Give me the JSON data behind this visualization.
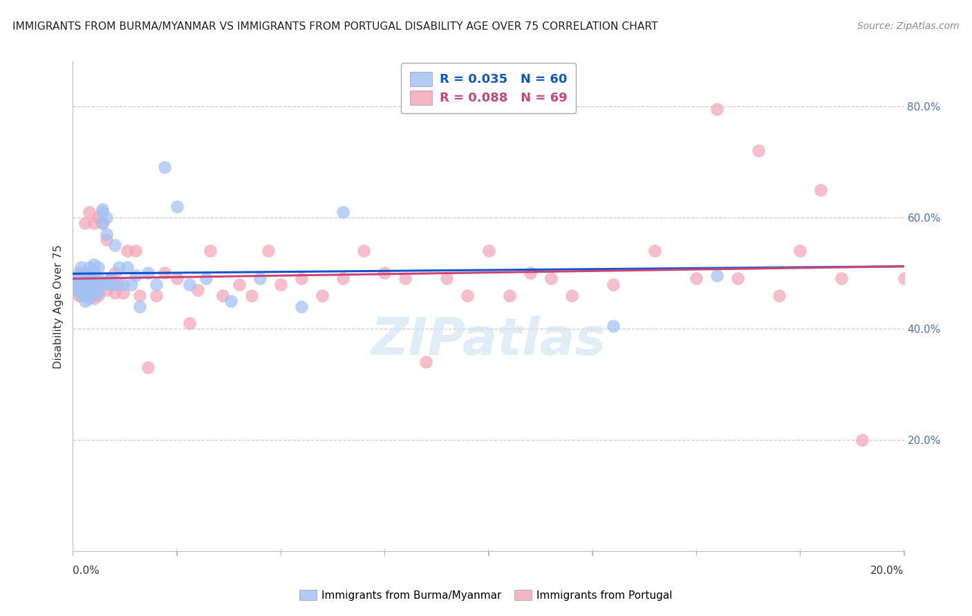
{
  "title": "IMMIGRANTS FROM BURMA/MYANMAR VS IMMIGRANTS FROM PORTUGAL DISABILITY AGE OVER 75 CORRELATION CHART",
  "source": "Source: ZipAtlas.com",
  "ylabel": "Disability Age Over 75",
  "xlim": [
    0.0,
    0.2
  ],
  "ylim": [
    0.0,
    0.88
  ],
  "blue_R": 0.035,
  "blue_N": 60,
  "pink_R": 0.088,
  "pink_N": 69,
  "blue_color": "#a4c2f4",
  "pink_color": "#f4a7b9",
  "blue_line_color": "#1155cc",
  "pink_line_color": "#cc4477",
  "legend_label_blue": "Immigrants from Burma/Myanmar",
  "legend_label_pink": "Immigrants from Portugal",
  "blue_scatter_x": [
    0.0005,
    0.001,
    0.001,
    0.0015,
    0.0015,
    0.002,
    0.002,
    0.002,
    0.002,
    0.002,
    0.0025,
    0.003,
    0.003,
    0.003,
    0.003,
    0.003,
    0.003,
    0.0035,
    0.004,
    0.004,
    0.004,
    0.004,
    0.004,
    0.005,
    0.005,
    0.005,
    0.005,
    0.005,
    0.006,
    0.006,
    0.006,
    0.006,
    0.007,
    0.007,
    0.007,
    0.007,
    0.008,
    0.008,
    0.009,
    0.009,
    0.01,
    0.01,
    0.011,
    0.012,
    0.013,
    0.014,
    0.015,
    0.016,
    0.018,
    0.02,
    0.022,
    0.025,
    0.028,
    0.032,
    0.038,
    0.045,
    0.055,
    0.065,
    0.13,
    0.155
  ],
  "blue_scatter_y": [
    0.475,
    0.48,
    0.49,
    0.47,
    0.5,
    0.485,
    0.495,
    0.46,
    0.51,
    0.475,
    0.465,
    0.48,
    0.5,
    0.49,
    0.47,
    0.46,
    0.45,
    0.49,
    0.5,
    0.485,
    0.47,
    0.455,
    0.51,
    0.495,
    0.505,
    0.475,
    0.465,
    0.515,
    0.49,
    0.48,
    0.51,
    0.465,
    0.615,
    0.61,
    0.59,
    0.48,
    0.6,
    0.57,
    0.49,
    0.48,
    0.55,
    0.48,
    0.51,
    0.48,
    0.51,
    0.48,
    0.495,
    0.44,
    0.5,
    0.48,
    0.69,
    0.62,
    0.48,
    0.49,
    0.45,
    0.49,
    0.44,
    0.61,
    0.405,
    0.495
  ],
  "pink_scatter_x": [
    0.0005,
    0.001,
    0.001,
    0.0015,
    0.002,
    0.002,
    0.0025,
    0.003,
    0.003,
    0.003,
    0.003,
    0.004,
    0.004,
    0.004,
    0.005,
    0.005,
    0.005,
    0.006,
    0.006,
    0.007,
    0.007,
    0.008,
    0.008,
    0.009,
    0.01,
    0.01,
    0.011,
    0.012,
    0.013,
    0.015,
    0.016,
    0.018,
    0.02,
    0.022,
    0.025,
    0.028,
    0.03,
    0.033,
    0.036,
    0.04,
    0.043,
    0.047,
    0.05,
    0.055,
    0.06,
    0.065,
    0.07,
    0.075,
    0.08,
    0.085,
    0.09,
    0.095,
    0.1,
    0.105,
    0.11,
    0.115,
    0.12,
    0.13,
    0.14,
    0.15,
    0.155,
    0.16,
    0.165,
    0.17,
    0.175,
    0.18,
    0.185,
    0.19,
    0.2
  ],
  "pink_scatter_y": [
    0.47,
    0.49,
    0.48,
    0.46,
    0.5,
    0.47,
    0.48,
    0.59,
    0.48,
    0.46,
    0.475,
    0.61,
    0.46,
    0.5,
    0.59,
    0.48,
    0.455,
    0.6,
    0.46,
    0.59,
    0.48,
    0.56,
    0.47,
    0.49,
    0.5,
    0.465,
    0.48,
    0.465,
    0.54,
    0.54,
    0.46,
    0.33,
    0.46,
    0.5,
    0.49,
    0.41,
    0.47,
    0.54,
    0.46,
    0.48,
    0.46,
    0.54,
    0.48,
    0.49,
    0.46,
    0.49,
    0.54,
    0.5,
    0.49,
    0.34,
    0.49,
    0.46,
    0.54,
    0.46,
    0.5,
    0.49,
    0.46,
    0.48,
    0.54,
    0.49,
    0.795,
    0.49,
    0.72,
    0.46,
    0.54,
    0.65,
    0.49,
    0.2,
    0.49
  ],
  "background_color": "#ffffff",
  "grid_color": "#cccccc",
  "watermark": "ZIPatlas"
}
